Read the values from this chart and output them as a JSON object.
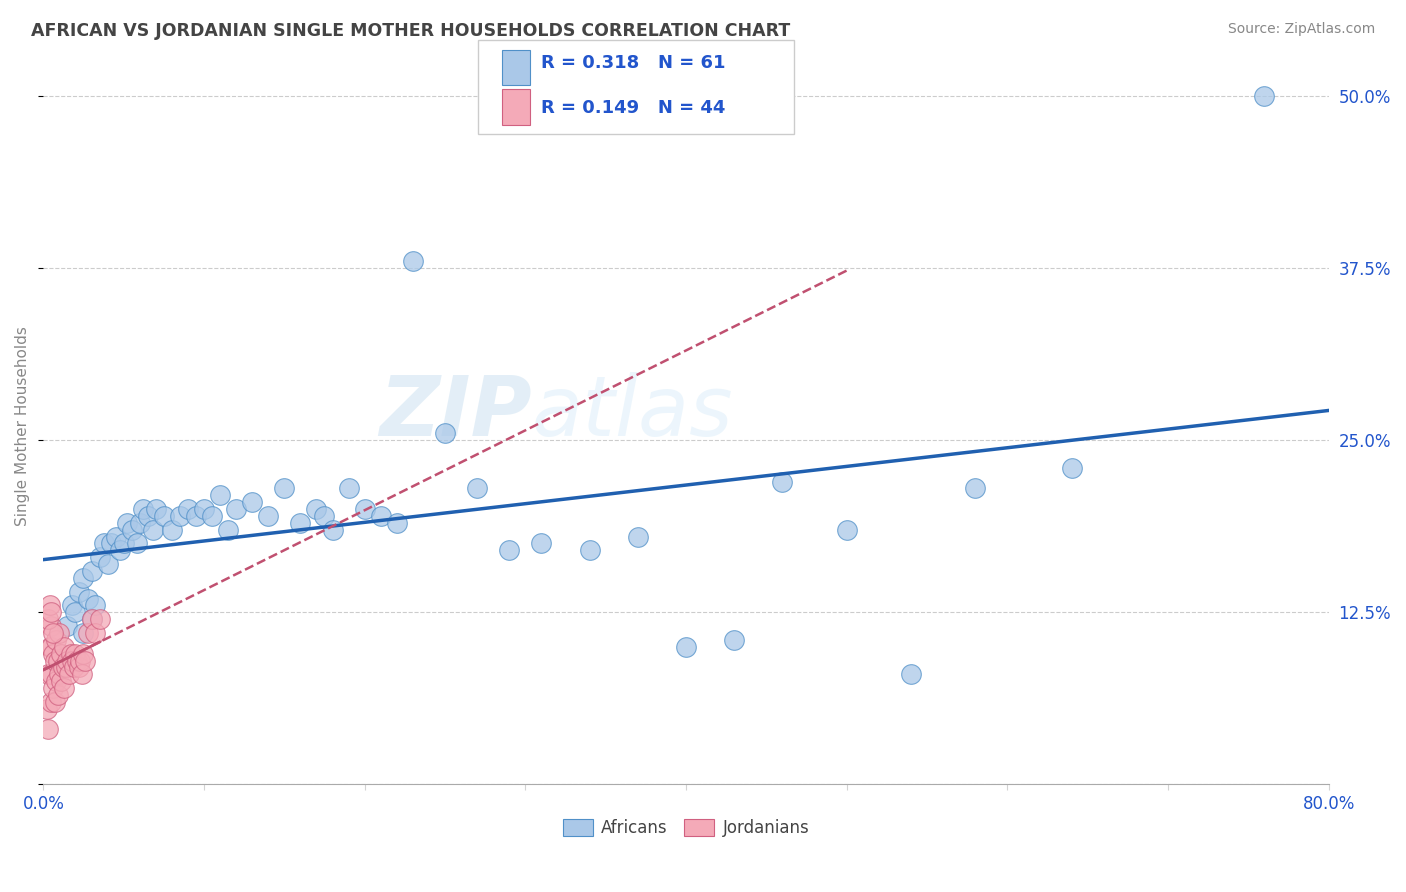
{
  "title": "AFRICAN VS JORDANIAN SINGLE MOTHER HOUSEHOLDS CORRELATION CHART",
  "source": "Source: ZipAtlas.com",
  "ylabel": "Single Mother Households",
  "xlim": [
    0,
    0.8
  ],
  "ylim": [
    0,
    0.52
  ],
  "xticks": [
    0.0,
    0.1,
    0.2,
    0.3,
    0.4,
    0.5,
    0.6,
    0.7,
    0.8
  ],
  "yticks": [
    0.0,
    0.125,
    0.25,
    0.375,
    0.5
  ],
  "ytick_labels": [
    "",
    "12.5%",
    "25.0%",
    "37.5%",
    "50.0%"
  ],
  "xtick_labels": [
    "0.0%",
    "",
    "",
    "",
    "",
    "",
    "",
    "",
    "80.0%"
  ],
  "blue_R": 0.318,
  "blue_N": 61,
  "pink_R": 0.149,
  "pink_N": 44,
  "blue_color": "#aac8e8",
  "pink_color": "#f4aab8",
  "blue_edge_color": "#5090c8",
  "pink_edge_color": "#d06080",
  "blue_line_color": "#2060b0",
  "pink_line_color": "#c05070",
  "legend_text_color": "#2255cc",
  "watermark_color": "#c8dff0",
  "blue_scatter_x": [
    0.015,
    0.018,
    0.02,
    0.022,
    0.025,
    0.025,
    0.028,
    0.03,
    0.03,
    0.032,
    0.035,
    0.038,
    0.04,
    0.042,
    0.045,
    0.048,
    0.05,
    0.052,
    0.055,
    0.058,
    0.06,
    0.062,
    0.065,
    0.068,
    0.07,
    0.075,
    0.08,
    0.085,
    0.09,
    0.095,
    0.1,
    0.105,
    0.11,
    0.115,
    0.12,
    0.13,
    0.14,
    0.15,
    0.16,
    0.17,
    0.175,
    0.18,
    0.19,
    0.2,
    0.21,
    0.22,
    0.23,
    0.25,
    0.27,
    0.29,
    0.31,
    0.34,
    0.37,
    0.4,
    0.43,
    0.46,
    0.5,
    0.54,
    0.58,
    0.64,
    0.76
  ],
  "blue_scatter_y": [
    0.115,
    0.13,
    0.125,
    0.14,
    0.11,
    0.15,
    0.135,
    0.12,
    0.155,
    0.13,
    0.165,
    0.175,
    0.16,
    0.175,
    0.18,
    0.17,
    0.175,
    0.19,
    0.185,
    0.175,
    0.19,
    0.2,
    0.195,
    0.185,
    0.2,
    0.195,
    0.185,
    0.195,
    0.2,
    0.195,
    0.2,
    0.195,
    0.21,
    0.185,
    0.2,
    0.205,
    0.195,
    0.215,
    0.19,
    0.2,
    0.195,
    0.185,
    0.215,
    0.2,
    0.195,
    0.19,
    0.38,
    0.255,
    0.215,
    0.17,
    0.175,
    0.17,
    0.18,
    0.1,
    0.105,
    0.22,
    0.185,
    0.08,
    0.215,
    0.23,
    0.5
  ],
  "pink_scatter_x": [
    0.002,
    0.003,
    0.003,
    0.004,
    0.005,
    0.005,
    0.005,
    0.005,
    0.006,
    0.006,
    0.007,
    0.007,
    0.008,
    0.008,
    0.009,
    0.009,
    0.01,
    0.01,
    0.011,
    0.011,
    0.012,
    0.013,
    0.013,
    0.014,
    0.015,
    0.016,
    0.017,
    0.018,
    0.019,
    0.02,
    0.021,
    0.022,
    0.023,
    0.024,
    0.025,
    0.026,
    0.028,
    0.03,
    0.032,
    0.035,
    0.003,
    0.004,
    0.005,
    0.006
  ],
  "pink_scatter_y": [
    0.055,
    0.08,
    0.04,
    0.1,
    0.06,
    0.08,
    0.1,
    0.115,
    0.07,
    0.095,
    0.06,
    0.09,
    0.075,
    0.105,
    0.065,
    0.09,
    0.08,
    0.11,
    0.075,
    0.095,
    0.085,
    0.07,
    0.1,
    0.085,
    0.09,
    0.08,
    0.095,
    0.09,
    0.085,
    0.095,
    0.09,
    0.085,
    0.09,
    0.08,
    0.095,
    0.09,
    0.11,
    0.12,
    0.11,
    0.12,
    0.12,
    0.13,
    0.125,
    0.11
  ]
}
